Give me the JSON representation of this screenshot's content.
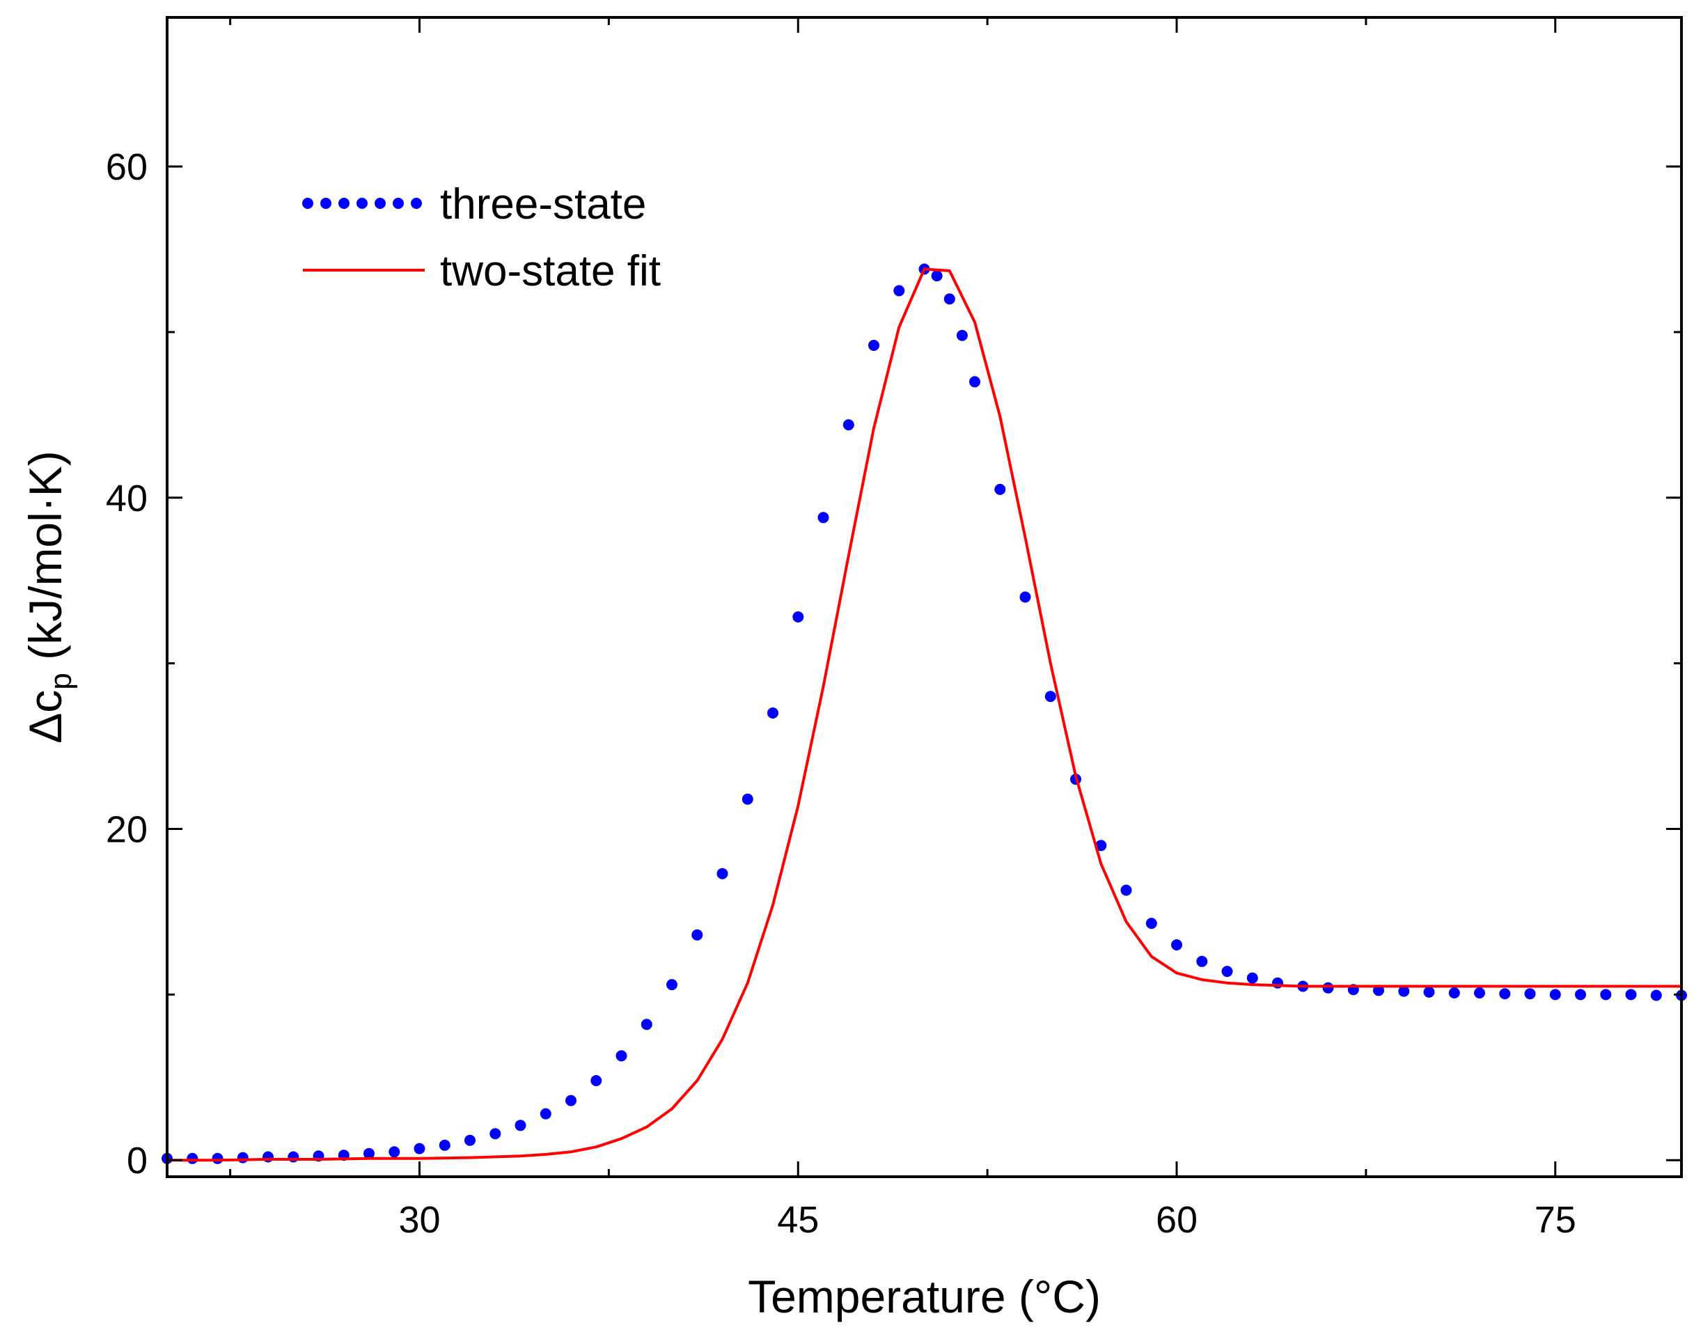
{
  "chart_data": {
    "type": "line",
    "title": "",
    "xlabel": "Temperature (°C)",
    "ylabel_parts": {
      "prefix": "Δc",
      "sub": "p",
      "suffix": " (kJ/mol·K)"
    },
    "xlim": [
      20,
      80
    ],
    "ylim": [
      -1,
      69
    ],
    "x_ticks": [
      30,
      45,
      60,
      75
    ],
    "x_tick_labels": [
      "30",
      "45",
      "60",
      "75"
    ],
    "y_ticks": [
      0,
      20,
      40,
      60
    ],
    "y_tick_labels": [
      "0",
      "20",
      "40",
      "60"
    ],
    "grid": false,
    "legend_position": "top-left",
    "series": [
      {
        "name": "three-state",
        "style": "dotted",
        "color": "#0000ff",
        "x": [
          20,
          21,
          22,
          23,
          24,
          25,
          26,
          27,
          28,
          29,
          30,
          31,
          32,
          33,
          34,
          35,
          36,
          37,
          38,
          39,
          40,
          41,
          42,
          43,
          44,
          45,
          46,
          47,
          48,
          49,
          50,
          50.5,
          51,
          51.5,
          52,
          53,
          54,
          55,
          56,
          57,
          58,
          59,
          60,
          61,
          62,
          63,
          64,
          65,
          66,
          67,
          68,
          69,
          70,
          71,
          72,
          73,
          74,
          75,
          76,
          77,
          78,
          79,
          80
        ],
        "values": [
          0.1,
          0.1,
          0.1,
          0.15,
          0.2,
          0.2,
          0.25,
          0.3,
          0.4,
          0.5,
          0.7,
          0.9,
          1.2,
          1.6,
          2.1,
          2.8,
          3.6,
          4.8,
          6.3,
          8.2,
          10.6,
          13.6,
          17.3,
          21.8,
          27.0,
          32.8,
          38.8,
          44.4,
          49.2,
          52.5,
          53.8,
          53.4,
          52.0,
          49.8,
          47.0,
          40.5,
          34.0,
          28.0,
          23.0,
          19.0,
          16.3,
          14.3,
          13.0,
          12.0,
          11.4,
          11.0,
          10.7,
          10.5,
          10.4,
          10.3,
          10.25,
          10.2,
          10.15,
          10.1,
          10.1,
          10.05,
          10.05,
          10.0,
          10.0,
          10.0,
          10.0,
          9.95,
          9.95
        ]
      },
      {
        "name": "two-state fit",
        "style": "solid",
        "color": "#ff0000",
        "x": [
          20,
          22,
          24,
          26,
          28,
          30,
          32,
          34,
          35,
          36,
          37,
          38,
          39,
          40,
          41,
          42,
          43,
          44,
          45,
          46,
          47,
          48,
          49,
          50,
          51,
          52,
          53,
          54,
          55,
          56,
          57,
          58,
          59,
          60,
          61,
          62,
          63,
          64,
          65,
          66,
          68,
          70,
          72,
          74,
          76,
          78,
          80
        ],
        "values": [
          0.0,
          0.0,
          0.05,
          0.05,
          0.1,
          0.1,
          0.15,
          0.25,
          0.35,
          0.5,
          0.8,
          1.3,
          2.0,
          3.1,
          4.8,
          7.3,
          10.7,
          15.4,
          21.4,
          28.6,
          36.5,
          44.2,
          50.3,
          53.8,
          53.7,
          50.6,
          44.9,
          37.6,
          30.0,
          23.2,
          17.9,
          14.4,
          12.3,
          11.3,
          10.9,
          10.7,
          10.6,
          10.55,
          10.5,
          10.5,
          10.5,
          10.5,
          10.5,
          10.5,
          10.5,
          10.5,
          10.5
        ]
      }
    ]
  }
}
